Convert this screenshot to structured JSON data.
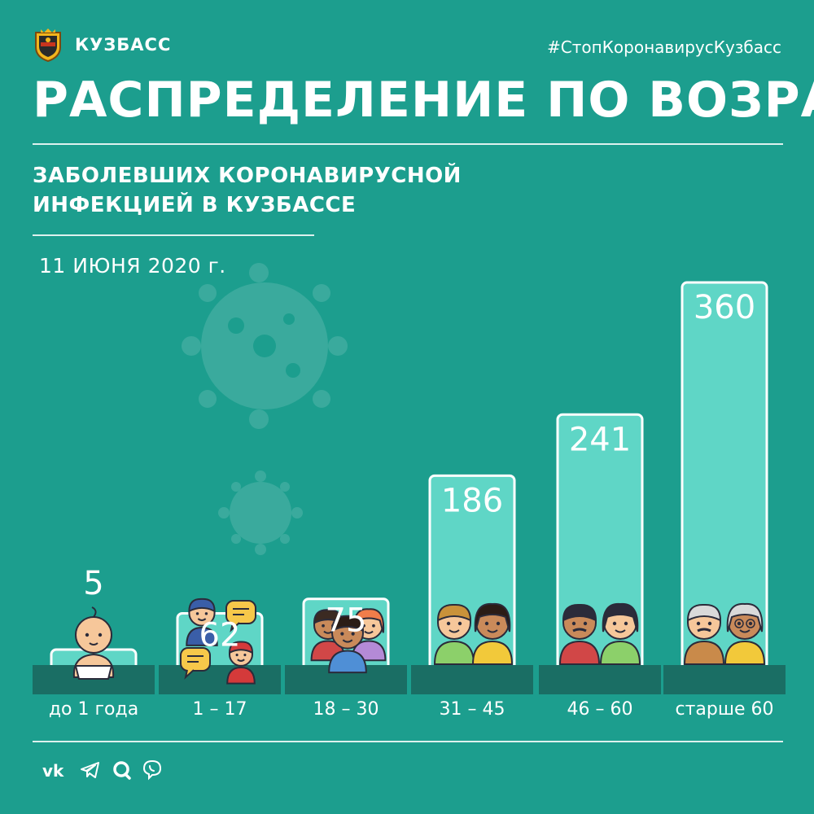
{
  "header": {
    "brand": "КУЗБАСС",
    "hashtag": "#СтопКоронавирусКузбасс",
    "title": "РАСПРЕДЕЛЕНИЕ ПО ВОЗРАСТУ",
    "subtitle_line1": "ЗАБОЛЕВШИХ КОРОНАВИРУСНОЙ",
    "subtitle_line2": "ИНФЕКЦИЕЙ В КУЗБАССЕ",
    "date": "11 ИЮНЯ 2020 г."
  },
  "colors": {
    "background": "#1c9e8e",
    "bar_fill": "#5fd6c6",
    "shelf": "#1a6e64",
    "text": "#ffffff"
  },
  "chart_data": {
    "type": "bar",
    "categories": [
      "до 1 года",
      "1 – 17",
      "18 – 30",
      "31 – 45",
      "46 – 60",
      "старше 60"
    ],
    "values": [
      5,
      62,
      75,
      186,
      241,
      360
    ],
    "icons": [
      "baby-icon",
      "kids-icon",
      "young-adults-icon",
      "adult-couple-icon",
      "middle-aged-couple-icon",
      "elderly-couple-icon"
    ],
    "ylim": [
      0,
      360
    ]
  },
  "footer": {
    "social": [
      "vk-icon",
      "telegram-icon",
      "ok-icon",
      "viber-icon"
    ]
  }
}
